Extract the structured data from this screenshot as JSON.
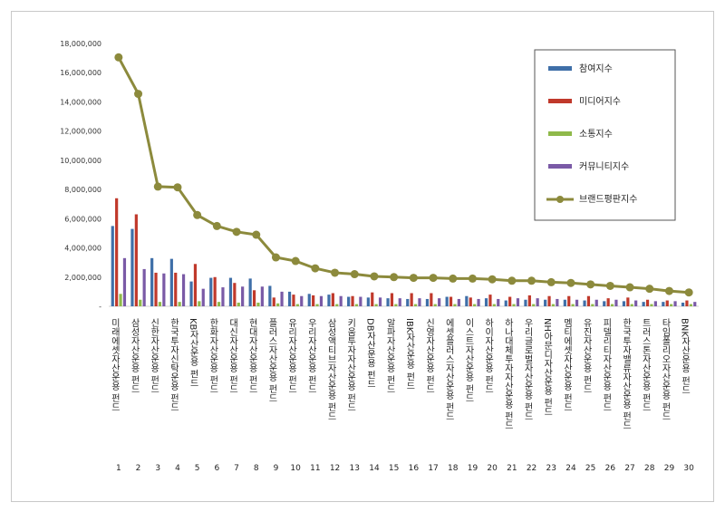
{
  "chart_data": {
    "type": "bar",
    "overlay_line_series": "브랜드평판지수",
    "ylim": [
      0,
      18000000
    ],
    "yticks": [
      "-",
      "2,000,000",
      "4,000,000",
      "6,000,000",
      "8,000,000",
      "10,000,000",
      "12,000,000",
      "14,000,000",
      "16,000,000",
      "18,000,000"
    ],
    "legend_position": "top-right",
    "grid": false,
    "ranks": [
      "1",
      "2",
      "3",
      "4",
      "5",
      "6",
      "7",
      "8",
      "9",
      "10",
      "11",
      "12",
      "13",
      "14",
      "15",
      "16",
      "17",
      "18",
      "19",
      "20",
      "21",
      "22",
      "23",
      "24",
      "25",
      "26",
      "27",
      "28",
      "29",
      "30"
    ],
    "categories": [
      "미래에셋자산운용 펀드",
      "삼성자산운용 펀드",
      "신한자산운용 펀드",
      "한국투자신탁운용 펀드",
      "KB자산운용 펀드",
      "한화자산운용 펀드",
      "대신자산운용 펀드",
      "현대자산운용 펀드",
      "플러스자산운용 펀드",
      "유리자산운용 펀드",
      "우리자산운용 펀드",
      "삼성액티브자산운용 펀드",
      "키움투자자산운용 펀드",
      "DB자산운용 펀드",
      "알파자산운용 펀드",
      "IBK자산운용 펀드",
      "신영자산운용 펀드",
      "에셋플러스자산운용 펀드",
      "이스트자산운용 펀드",
      "하이자산운용 펀드",
      "하나대체투자자산운용 펀드",
      "우리글로벌자산운용 펀드",
      "NH아문디자산운용 펀드",
      "멤티에셋자산운용 펀드",
      "유진자산운용 펀드",
      "피델리티자산운용 펀드",
      "한국투자밸류자산운용 펀드",
      "트러스톤자산운용 펀드",
      "타임폴리오자산운용 펀드",
      "BNK자산운용 펀드"
    ],
    "series": [
      {
        "name": "참여지수",
        "color": "#3f6fa8",
        "type": "bar",
        "values": [
          5500000,
          5300000,
          3300000,
          3250000,
          1700000,
          1950000,
          1950000,
          1900000,
          1400000,
          1000000,
          850000,
          800000,
          650000,
          600000,
          550000,
          500000,
          500000,
          650000,
          700000,
          550000,
          400000,
          450000,
          450000,
          450000,
          400000,
          350000,
          350000,
          300000,
          300000,
          250000
        ]
      },
      {
        "name": "미디어지수",
        "color": "#c0392b",
        "type": "bar",
        "values": [
          7400000,
          6300000,
          2300000,
          2300000,
          2900000,
          2000000,
          1600000,
          1100000,
          600000,
          800000,
          750000,
          900000,
          700000,
          950000,
          900000,
          900000,
          900000,
          650000,
          600000,
          800000,
          650000,
          750000,
          700000,
          700000,
          700000,
          550000,
          600000,
          450000,
          400000,
          400000
        ]
      },
      {
        "name": "소통지수",
        "color": "#8fb94a",
        "type": "bar",
        "values": [
          850000,
          450000,
          300000,
          300000,
          350000,
          300000,
          250000,
          250000,
          200000,
          150000,
          150000,
          150000,
          150000,
          150000,
          150000,
          150000,
          150000,
          150000,
          150000,
          150000,
          150000,
          150000,
          150000,
          150000,
          150000,
          150000,
          150000,
          150000,
          150000,
          150000
        ]
      },
      {
        "name": "커뮤니티지수",
        "color": "#7a5aa6",
        "type": "bar",
        "values": [
          3300000,
          2550000,
          2250000,
          2200000,
          1200000,
          1300000,
          1350000,
          1350000,
          1000000,
          700000,
          700000,
          700000,
          650000,
          600000,
          550000,
          550000,
          550000,
          500000,
          500000,
          500000,
          550000,
          550000,
          500000,
          450000,
          450000,
          450000,
          400000,
          350000,
          350000,
          300000
        ]
      },
      {
        "name": "브랜드평판지수",
        "color": "#8c8a3c",
        "type": "line",
        "values": [
          17050000,
          14550000,
          8200000,
          8150000,
          6250000,
          5500000,
          5100000,
          4900000,
          3350000,
          3100000,
          2600000,
          2300000,
          2200000,
          2050000,
          2000000,
          1950000,
          1950000,
          1900000,
          1900000,
          1850000,
          1750000,
          1750000,
          1650000,
          1600000,
          1500000,
          1400000,
          1300000,
          1200000,
          1050000,
          950000
        ]
      }
    ]
  }
}
